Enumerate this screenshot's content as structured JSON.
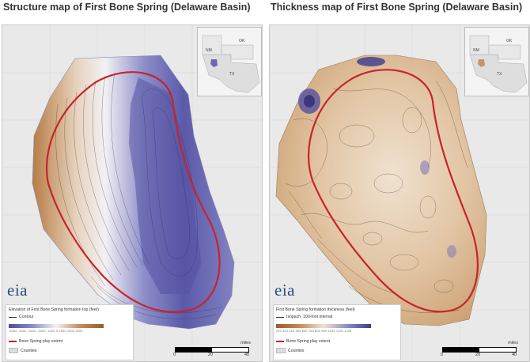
{
  "panels": [
    {
      "title": "Structure map of First Bone Spring (Delaware Basin)",
      "inset": {
        "labels": {
          "nm": "NM",
          "ok": "OK",
          "tx": "TX"
        }
      },
      "logo": "eia",
      "legend": {
        "title": "Elevation of First Bone Spring formation top (feet)",
        "contour_label": "Contour",
        "play_label": "Bone Spring play extent",
        "counties_label": "Counties",
        "ramp_colors": [
          "#4b4a9e",
          "#8b8cc8",
          "#f4f2f0",
          "#c48c5a",
          "#9a5a26"
        ],
        "ramp_ticks": "-5000  -4000  -3000  -2000  -1000  0  1000  2000  3000"
      },
      "scale": {
        "unit": "miles",
        "ticks": [
          "0",
          "20",
          "40"
        ]
      }
    },
    {
      "title": "Thickness map of First Bone Spring (Delaware Basin)",
      "inset": {
        "labels": {
          "nm": "NM",
          "ok": "OK",
          "tx": "TX"
        }
      },
      "logo": "eia",
      "legend": {
        "title": "First Bone Spring formation thickness (feet)",
        "contour_label": "Isopach, 100-foot interval",
        "play_label": "Bone Spring play extent",
        "counties_label": "Counties",
        "ramp_colors": [
          "#9a5a26",
          "#c48c5a",
          "#f0e2d0",
          "#8b8cc8",
          "#3b3a8e"
        ],
        "ramp_ticks": "200  300  400  500  600  700  800  900  1000  1100  1200"
      },
      "scale": {
        "unit": "miles",
        "ticks": [
          "0",
          "20",
          "40"
        ]
      }
    }
  ],
  "colors": {
    "play_extent": "#c8232b",
    "background": "#e9e9e9",
    "basin_counties": "#cfcfcf"
  }
}
